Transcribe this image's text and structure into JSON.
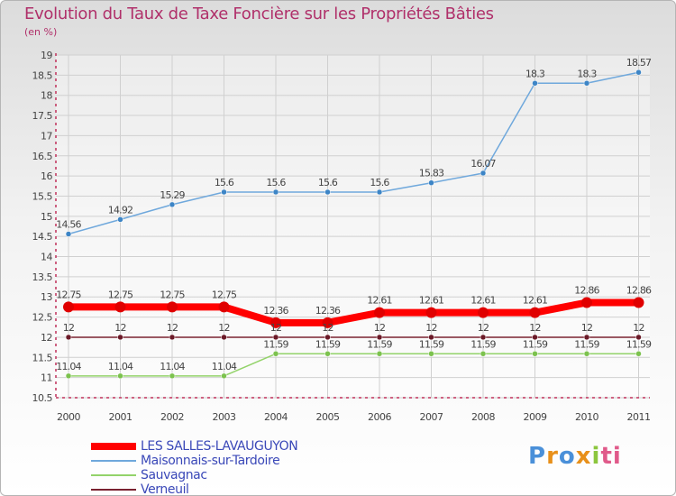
{
  "chart_data": {
    "type": "line",
    "title": "Evolution du Taux de Taxe Foncière sur les Propriétés Bâties",
    "unit_label": "(en %)",
    "ylim": [
      10.5,
      19
    ],
    "y_ticks": [
      10.5,
      11,
      11.5,
      12,
      12.5,
      13,
      13.5,
      14,
      14.5,
      15,
      15.5,
      16,
      16.5,
      17,
      17.5,
      18,
      18.5,
      19
    ],
    "y_tick_labels": [
      "10.5",
      "11",
      "11.5",
      "12",
      "12.5",
      "13",
      "13.5",
      "14",
      "14.5",
      "15",
      "15.5",
      "16",
      "16.5",
      "17",
      "17.5",
      "18",
      "18.5",
      "19"
    ],
    "categories": [
      "2000",
      "2001",
      "2002",
      "2003",
      "2004",
      "2005",
      "2006",
      "2007",
      "2008",
      "2009",
      "2010",
      "2011"
    ],
    "grid": true,
    "legend_position": "bottom-left",
    "series": [
      {
        "name": "LES SALLES-LAVAUGUYON",
        "color": "#ff0000",
        "marker": "#e00000",
        "width": 8,
        "label_pos": "above",
        "values": [
          12.75,
          12.75,
          12.75,
          12.75,
          12.36,
          12.36,
          12.61,
          12.61,
          12.61,
          12.61,
          12.86,
          12.86
        ],
        "labels": [
          "12.75",
          "12.75",
          "12.75",
          "12.75",
          "12.36",
          "12.36",
          "12.61",
          "12.61",
          "12.61",
          "12.61",
          "12.86",
          "12.86"
        ]
      },
      {
        "name": "Maisonnais-sur-Tardoire",
        "color": "#6fa8dc",
        "marker": "#3d85c6",
        "width": 1.5,
        "label_pos": "above",
        "values": [
          14.56,
          14.92,
          15.29,
          15.6,
          15.6,
          15.6,
          15.6,
          15.83,
          16.07,
          18.3,
          18.3,
          18.57
        ],
        "labels": [
          "14.56",
          "14.92",
          "15.29",
          "15.6",
          "15.6",
          "15.6",
          "15.6",
          "15.83",
          "16.07",
          "18.3",
          "18.3",
          "18.57"
        ]
      },
      {
        "name": "Sauvagnac",
        "color": "#93d36a",
        "marker": "#7cc24e",
        "width": 1.5,
        "label_pos": "above",
        "values": [
          11.04,
          11.04,
          11.04,
          11.04,
          11.59,
          11.59,
          11.59,
          11.59,
          11.59,
          11.59,
          11.59,
          11.59
        ],
        "labels": [
          "11.04",
          "11.04",
          "11.04",
          "11.04",
          "11.59",
          "11.59",
          "11.59",
          "11.59",
          "11.59",
          "11.59",
          "11.59",
          "11.59"
        ]
      },
      {
        "name": "Verneuil",
        "color": "#7a2230",
        "marker": "#6b1a28",
        "width": 1.5,
        "label_pos": "above",
        "values": [
          12,
          12,
          12,
          12,
          12,
          12,
          12,
          12,
          12,
          12,
          12,
          12
        ],
        "labels": [
          "12",
          "12",
          "12",
          "12",
          "12",
          "12",
          "12",
          "12",
          "12",
          "12",
          "12",
          "12"
        ]
      }
    ]
  },
  "logo": {
    "p1": "P",
    "p2": "r",
    "p3": "o",
    "p4": "x",
    "p5": "i",
    "p6": "ti"
  }
}
